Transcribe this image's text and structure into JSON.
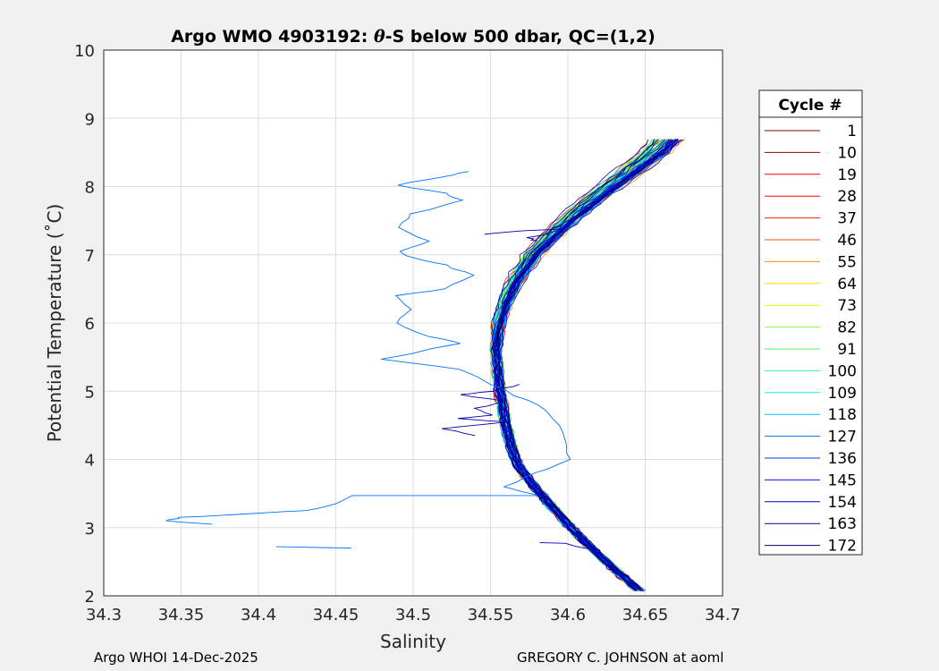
{
  "chart_data": {
    "type": "line",
    "title_prefix": "Argo WMO 4903192: ",
    "title_theta": "θ",
    "title_suffix": "-S below 500 dbar,  QC=(1,2)",
    "xlabel": "Salinity",
    "ylabel": "Potential Temperature (˚C)",
    "xlim": [
      34.3,
      34.7
    ],
    "ylim": [
      2,
      10
    ],
    "xticks": [
      "34.3",
      "34.35",
      "34.4",
      "34.45",
      "34.5",
      "34.55",
      "34.6",
      "34.65",
      "34.7"
    ],
    "yticks": [
      "2",
      "3",
      "4",
      "5",
      "6",
      "7",
      "8",
      "9",
      "10"
    ],
    "grid": true,
    "legend": {
      "title": "Cycle #",
      "placement": "outside-right",
      "entries": [
        {
          "label": "1",
          "color": "#800000"
        },
        {
          "label": "10",
          "color": "#a00000"
        },
        {
          "label": "19",
          "color": "#e80000"
        },
        {
          "label": "28",
          "color": "#ff0000"
        },
        {
          "label": "37",
          "color": "#ff2000"
        },
        {
          "label": "46",
          "color": "#ff5000"
        },
        {
          "label": "55",
          "color": "#ff9000"
        },
        {
          "label": "64",
          "color": "#ffd800"
        },
        {
          "label": "73",
          "color": "#c8ff00"
        },
        {
          "label": "82",
          "color": "#80ff40"
        },
        {
          "label": "91",
          "color": "#50f060"
        },
        {
          "label": "100",
          "color": "#30f0a0"
        },
        {
          "label": "109",
          "color": "#20e8e0"
        },
        {
          "label": "118",
          "color": "#00c0ff"
        },
        {
          "label": "127",
          "color": "#0070ff"
        },
        {
          "label": "136",
          "color": "#0040ff"
        },
        {
          "label": "145",
          "color": "#0010f0"
        },
        {
          "label": "154",
          "color": "#0000d0"
        },
        {
          "label": "163",
          "color": "#0000a8"
        },
        {
          "label": "172",
          "color": "#000070"
        }
      ]
    },
    "mean_profile": {
      "salinity": [
        34.646,
        34.632,
        34.62,
        34.608,
        34.598,
        34.588,
        34.578,
        34.568,
        34.563,
        34.56,
        34.557,
        34.555,
        34.553,
        34.554,
        34.558,
        34.565,
        34.575,
        34.588,
        34.602,
        34.618,
        34.635,
        34.652,
        34.662
      ],
      "theta": [
        2.08,
        2.35,
        2.6,
        2.85,
        3.1,
        3.35,
        3.6,
        3.9,
        4.2,
        4.5,
        4.85,
        5.2,
        5.6,
        5.95,
        6.3,
        6.65,
        7.0,
        7.3,
        7.6,
        7.9,
        8.2,
        8.5,
        8.75
      ]
    },
    "outlier_profiles": [
      {
        "cycle": "127",
        "salinity": [
          34.535,
          34.52,
          34.49,
          34.52,
          34.53,
          34.5,
          34.49,
          34.51,
          34.49,
          34.5,
          34.52,
          34.54,
          34.52,
          34.49,
          34.5,
          34.49,
          34.51,
          34.53,
          34.48,
          34.53,
          34.56,
          34.58,
          34.59,
          34.6,
          34.6,
          34.58,
          34.56,
          34.58
        ],
        "theta": [
          8.22,
          8.15,
          8.02,
          7.9,
          7.8,
          7.6,
          7.4,
          7.2,
          7.05,
          6.95,
          6.85,
          6.7,
          6.5,
          6.4,
          6.2,
          6.0,
          5.8,
          5.7,
          5.47,
          5.32,
          5.0,
          4.8,
          4.6,
          4.3,
          4.0,
          3.8,
          3.6,
          3.48
        ]
      },
      {
        "cycle": "127",
        "salinity": [
          34.58,
          34.46,
          34.45,
          34.43,
          34.39,
          34.35,
          34.34,
          34.37
        ],
        "theta": [
          3.47,
          3.47,
          3.35,
          3.25,
          3.2,
          3.15,
          3.1,
          3.05
        ]
      },
      {
        "cycle": "127",
        "salinity": [
          34.41,
          34.46
        ],
        "theta": [
          2.72,
          2.7
        ]
      },
      {
        "cycle": "163",
        "salinity": [
          34.57,
          34.55,
          34.53,
          34.56,
          34.54,
          34.55,
          34.53,
          34.56,
          34.52,
          34.54
        ],
        "theta": [
          5.1,
          5.0,
          4.95,
          4.85,
          4.75,
          4.65,
          4.6,
          4.55,
          4.45,
          4.35
        ]
      },
      {
        "cycle": "163",
        "salinity": [
          34.545,
          34.57,
          34.6,
          34.575,
          34.58
        ],
        "theta": [
          7.3,
          7.35,
          7.38,
          7.25,
          7.2
        ]
      },
      {
        "cycle": "154",
        "salinity": [
          34.58,
          34.6,
          34.62
        ],
        "theta": [
          2.78,
          2.77,
          2.64
        ]
      }
    ]
  },
  "footer": {
    "left": "Argo WHOI 14-Dec-2025",
    "right": "GREGORY C. JOHNSON at aoml"
  }
}
